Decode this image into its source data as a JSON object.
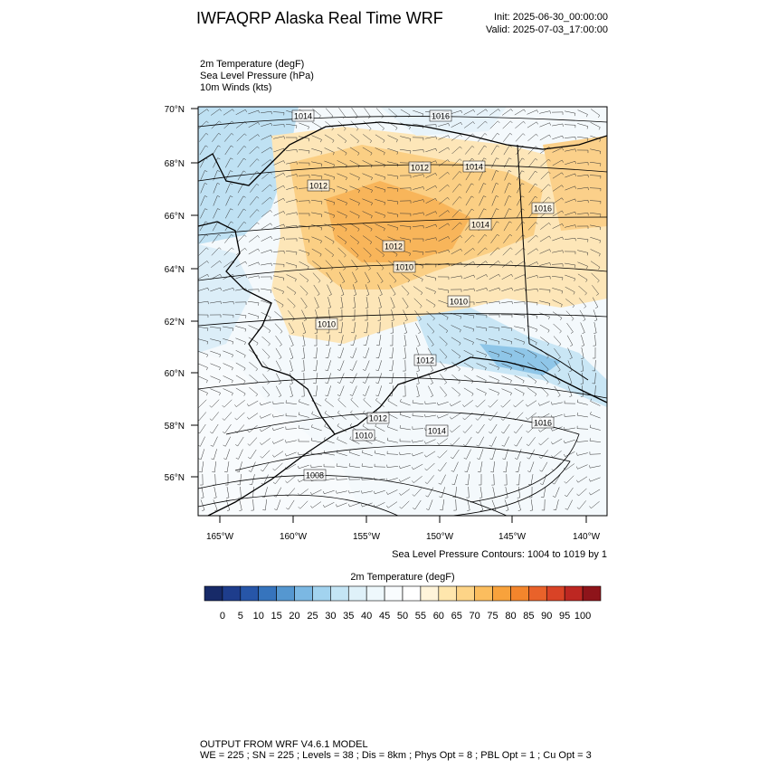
{
  "header": {
    "title": "IWFAQRP Alaska Real Time WRF",
    "init": "Init: 2025-06-30_00:00:00",
    "valid": "Valid: 2025-07-03_17:00:00",
    "fields": [
      "2m Temperature   (degF)",
      "Sea Level Pressure   (hPa)",
      "10m Winds   (kts)"
    ]
  },
  "map": {
    "lat_labels": [
      "70°N",
      "68°N",
      "66°N",
      "64°N",
      "62°N",
      "60°N",
      "58°N",
      "56°N"
    ],
    "lon_labels": [
      "165°W",
      "160°W",
      "155°W",
      "150°W",
      "145°W",
      "140°W"
    ],
    "contour_labels": [
      "1014",
      "1016",
      "1012",
      "1014",
      "1012",
      "1016",
      "1014",
      "1012",
      "1010",
      "1010",
      "1010",
      "1012",
      "1016",
      "1012",
      "1014",
      "1010",
      "1008"
    ],
    "contour_info": "Sea Level Pressure Contours: 1004 to 1019 by 1"
  },
  "colorbar": {
    "title": "2m Temperature  (degF)",
    "labels": [
      "0",
      "5",
      "10",
      "15",
      "20",
      "25",
      "30",
      "35",
      "40",
      "45",
      "50",
      "55",
      "60",
      "65",
      "70",
      "75",
      "80",
      "85",
      "90",
      "95",
      "100"
    ],
    "colors": [
      "#172a68",
      "#1e3d8c",
      "#2756a8",
      "#3674bd",
      "#5597d0",
      "#7bb8e3",
      "#a2d3ef",
      "#c4e5f5",
      "#dff1f9",
      "#eef8fc",
      "#f9fcfe",
      "#ffffff",
      "#fff4da",
      "#ffe6ad",
      "#fdd487",
      "#fbbd5e",
      "#f8a23c",
      "#f3852c",
      "#e9622a",
      "#d94326",
      "#bd2722",
      "#8e141a"
    ]
  },
  "footer": {
    "line1": "OUTPUT FROM WRF V4.6.1 MODEL",
    "line2": "WE = 225 ; SN = 225 ; Levels = 38 ; Dis = 8km ; Phys Opt = 8 ; PBL Opt = 1 ; Cu Opt = 3"
  }
}
